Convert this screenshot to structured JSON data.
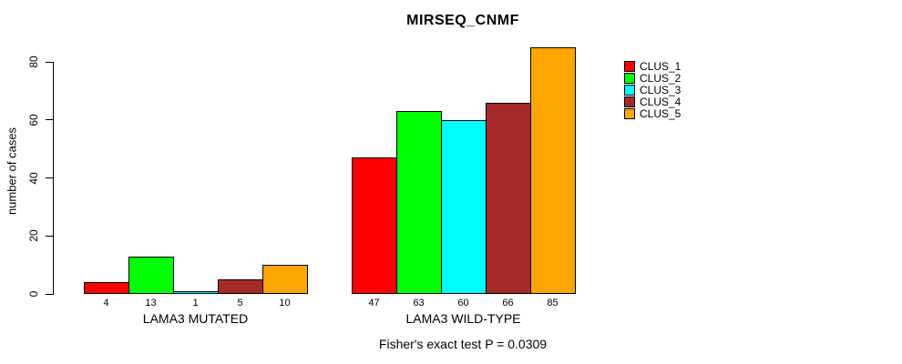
{
  "title": "MIRSEQ_CNMF",
  "footer": "Fisher's exact test P = 0.0309",
  "chart_data": {
    "type": "bar",
    "grouped": true,
    "title": "MIRSEQ_CNMF",
    "xlabel": "",
    "ylabel": "number of cases",
    "categories": [
      "LAMA3 MUTATED",
      "LAMA3 WILD-TYPE"
    ],
    "series": [
      {
        "name": "CLUS_1",
        "color": "#FF0000",
        "values": [
          4,
          47
        ]
      },
      {
        "name": "CLUS_2",
        "color": "#00FF00",
        "values": [
          13,
          63
        ]
      },
      {
        "name": "CLUS_3",
        "color": "#00FFFF",
        "values": [
          1,
          60
        ]
      },
      {
        "name": "CLUS_4",
        "color": "#A52A2A",
        "values": [
          5,
          66
        ]
      },
      {
        "name": "CLUS_5",
        "color": "#FFA500",
        "values": [
          10,
          85
        ]
      }
    ],
    "yticks": [
      0,
      20,
      40,
      60,
      80
    ],
    "ylim": [
      0,
      80
    ],
    "bar_value_labels": true,
    "grid": false,
    "legend_position": "right",
    "annotation": "Fisher's exact test P = 0.0309"
  }
}
